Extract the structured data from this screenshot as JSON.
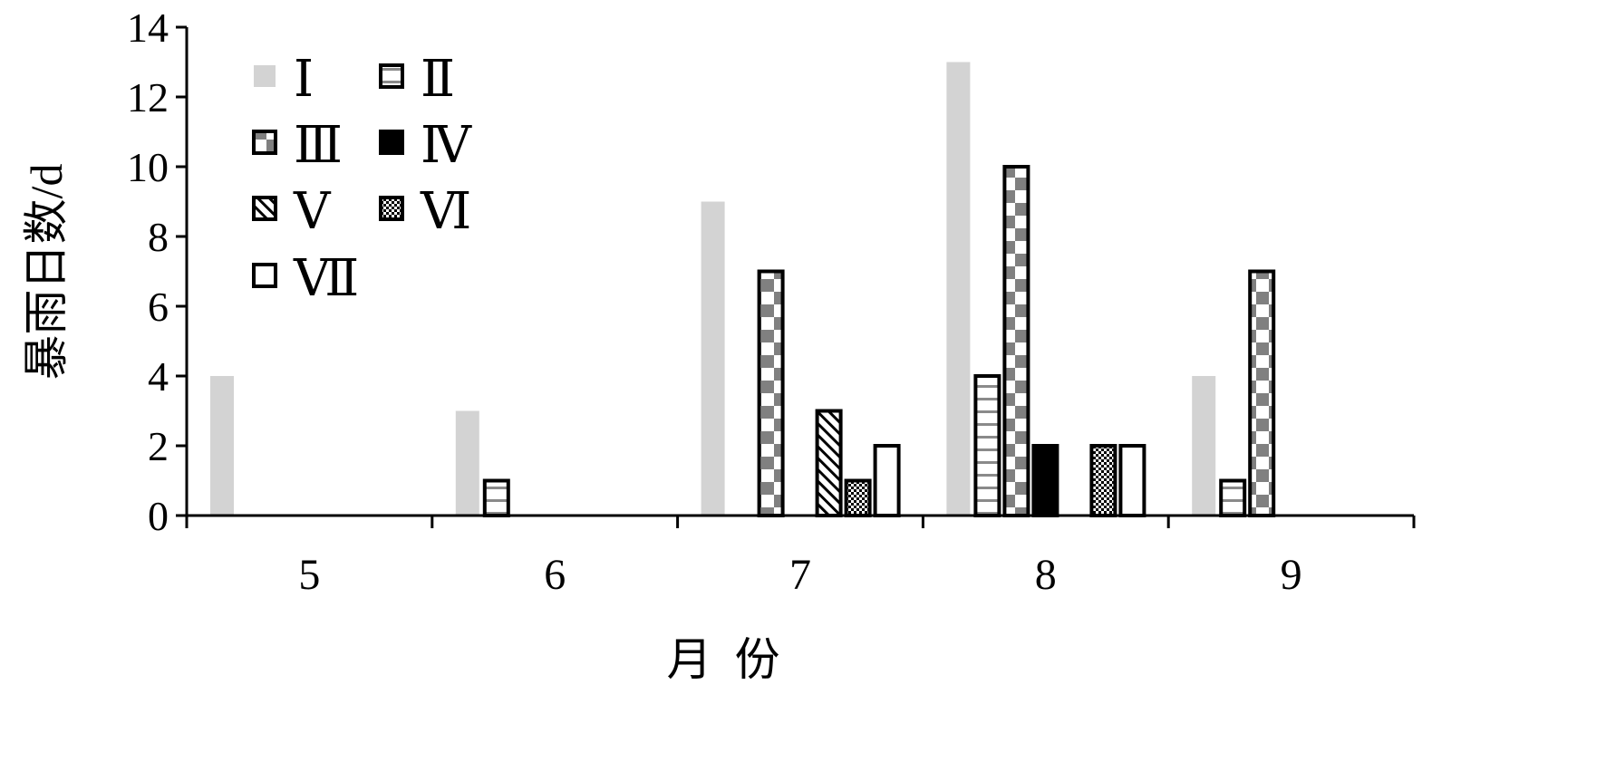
{
  "chart_data": {
    "type": "bar",
    "xlabel": "月  份",
    "ylabel": "暴雨日数/d",
    "categories": [
      "5",
      "6",
      "7",
      "8",
      "9"
    ],
    "ylim": [
      0,
      14
    ],
    "yticks": [
      "0",
      "2",
      "4",
      "6",
      "8",
      "10",
      "12",
      "14"
    ],
    "legend_position": "top-left",
    "series": [
      {
        "name": "Ⅰ",
        "pattern": "solid-light-gray",
        "values": [
          4,
          3,
          9,
          13,
          4
        ]
      },
      {
        "name": "Ⅱ",
        "pattern": "horizontal-lines",
        "values": [
          0,
          1,
          0,
          4,
          1
        ]
      },
      {
        "name": "Ⅲ",
        "pattern": "checker",
        "values": [
          0,
          0,
          7,
          10,
          7
        ]
      },
      {
        "name": "Ⅳ",
        "pattern": "solid-black",
        "values": [
          0,
          0,
          0,
          2,
          0
        ]
      },
      {
        "name": "Ⅴ",
        "pattern": "diagonal-lines",
        "values": [
          0,
          0,
          3,
          0,
          0
        ]
      },
      {
        "name": "Ⅵ",
        "pattern": "fine-checker",
        "values": [
          0,
          0,
          1,
          2,
          0
        ]
      },
      {
        "name": "Ⅶ",
        "pattern": "white",
        "values": [
          0,
          0,
          2,
          2,
          0
        ]
      }
    ],
    "colors": {
      "light_gray": "#d3d3d3",
      "dark_gray": "#808080",
      "black": "#000000",
      "white": "#ffffff"
    }
  }
}
